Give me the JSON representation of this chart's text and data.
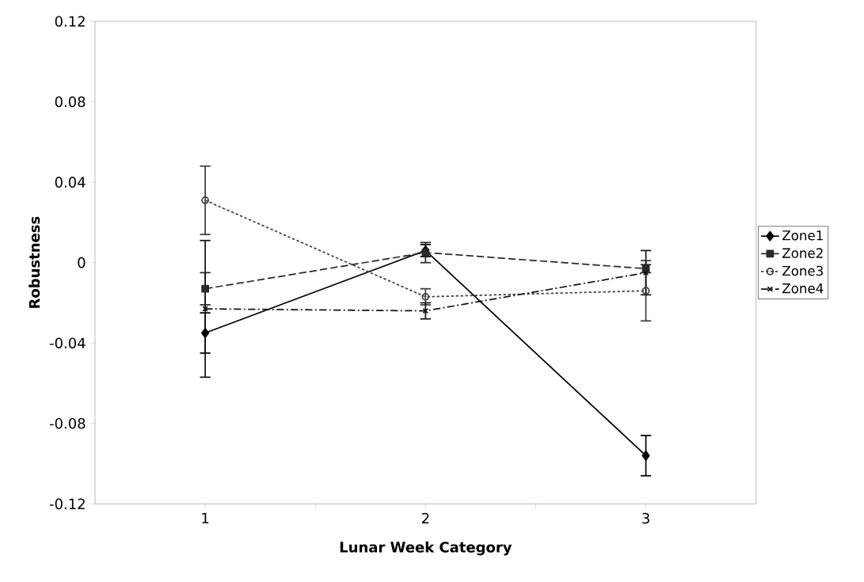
{
  "chart_data": {
    "type": "line",
    "xlabel": "Lunar Week Category",
    "ylabel": "Robustness",
    "categories": [
      "1",
      "2",
      "3"
    ],
    "series": [
      {
        "name": "Zone1",
        "color": "#000000",
        "marker": "diamond",
        "line_style": "solid",
        "values": [
          -0.035,
          0.006,
          -0.096
        ],
        "errors": [
          0.01,
          0.003,
          0.01
        ]
      },
      {
        "name": "Zone2",
        "color": "#2a2a2a",
        "marker": "square",
        "line_style": "dashed",
        "values": [
          -0.013,
          0.005,
          -0.003
        ],
        "errors": [
          0.008,
          0.005,
          0.002
        ]
      },
      {
        "name": "Zone3",
        "color": "#404040",
        "marker": "circle",
        "line_style": "dotted",
        "values": [
          0.031,
          -0.017,
          -0.014
        ],
        "errors": [
          0.017,
          0.004,
          0.015
        ]
      },
      {
        "name": "Zone4",
        "color": "#151515",
        "marker": "cross",
        "line_style": "dashdot",
        "values": [
          -0.023,
          -0.024,
          -0.005
        ],
        "errors": [
          0.034,
          0.004,
          0.011
        ]
      }
    ],
    "ylim": [
      -0.12,
      0.12
    ],
    "yticks": [
      -0.12,
      -0.08,
      -0.04,
      0,
      0.04,
      0.08,
      0.12
    ],
    "grid": false,
    "legend": "right"
  }
}
